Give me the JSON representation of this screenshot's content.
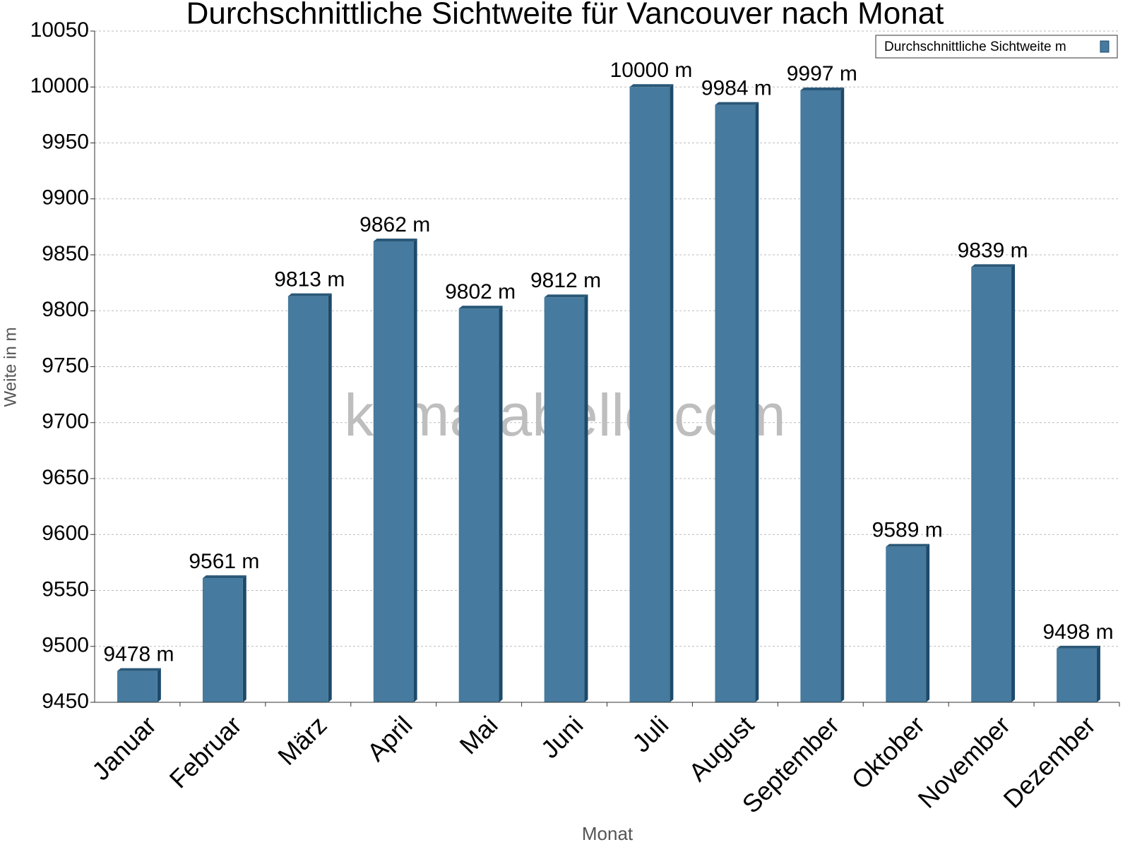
{
  "chart_data": {
    "type": "bar",
    "title": "Durchschnittliche Sichtweite für Vancouver nach Monat",
    "x_label": "Monat",
    "y_label": "Weite in m",
    "watermark": "klimatabelle.com",
    "categories": [
      "Januar",
      "Februar",
      "März",
      "April",
      "Mai",
      "Juni",
      "Juli",
      "August",
      "September",
      "Oktober",
      "November",
      "Dezember"
    ],
    "series": [
      {
        "name": "Durchschnittliche Sichtweite m",
        "color": "#467a9e",
        "values": [
          9478,
          9561,
          9813,
          9862,
          9802,
          9812,
          10000,
          9984,
          9997,
          9589,
          9839,
          9498
        ],
        "value_labels": [
          "9478 m",
          "9561 m",
          "9813 m",
          "9862 m",
          "9802 m",
          "9812 m",
          "10000 m",
          "9984 m",
          "9997 m",
          "9589 m",
          "9839 m",
          "9498 m"
        ]
      }
    ],
    "ylim": [
      9450,
      10050
    ],
    "yticks": [
      9450,
      9500,
      9550,
      9600,
      9650,
      9700,
      9750,
      9800,
      9850,
      9900,
      9950,
      10000,
      10050
    ],
    "grid": true,
    "legend": "top-right"
  }
}
